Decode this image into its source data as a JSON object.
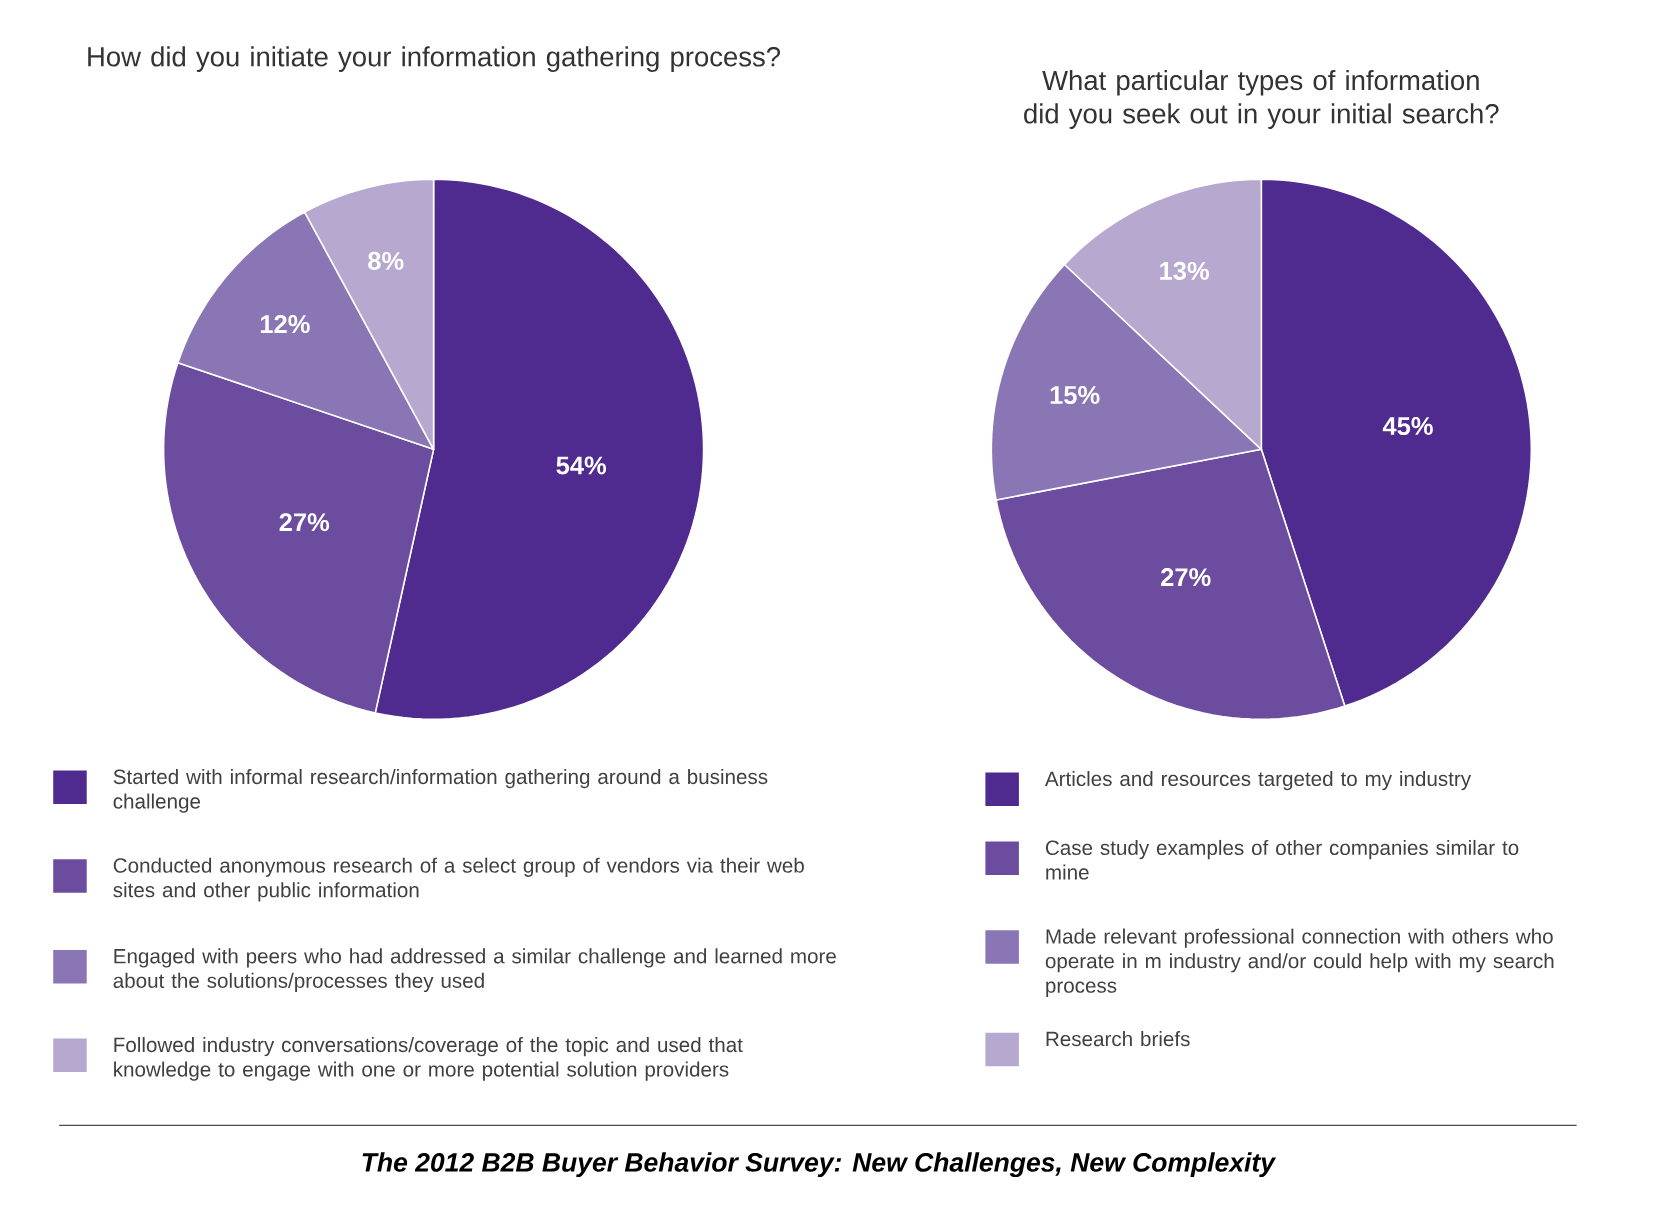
{
  "chart_data": [
    {
      "type": "pie",
      "title": "How did you initiate your information gathering process?",
      "categories": [
        "Started with informal research/information gathering around a business challenge",
        "Conducted anonymous research of a select group of vendors via their web sites and other public information",
        "Engaged with peers who had addressed a similar challenge and learned more about the solutions/processes they used",
        "Followed industry conversations/coverage of the topic and used that knowledge to engage with one or more potential solution providers"
      ],
      "values": [
        54,
        27,
        12,
        8
      ],
      "value_labels": [
        "54%",
        "27%",
        "12%",
        "8%"
      ],
      "colors": [
        "#4f2a8f",
        "#6c4c9f",
        "#8b76b5",
        "#b6a8cf"
      ],
      "legend": "bottom",
      "annotations": [
        "The 2012 B2B Buyer Behavior Survey: New Challenges, New Complexity"
      ]
    },
    {
      "type": "pie",
      "title": "What particular types of information did you seek out in your initial search?",
      "categories": [
        "Articles and resources targeted to my industry",
        "Case study examples of other companies similar to mine",
        "Made relevant professional connection with others who operate in m industry and/or could help with my search process",
        "Research briefs"
      ],
      "values": [
        45,
        27,
        15,
        13
      ],
      "value_labels": [
        "45%",
        "27%",
        "15%",
        "13%"
      ],
      "colors": [
        "#4f2a8f",
        "#6c4c9f",
        "#8b76b5",
        "#b6a8cf"
      ],
      "legend": "bottom"
    }
  ]
}
